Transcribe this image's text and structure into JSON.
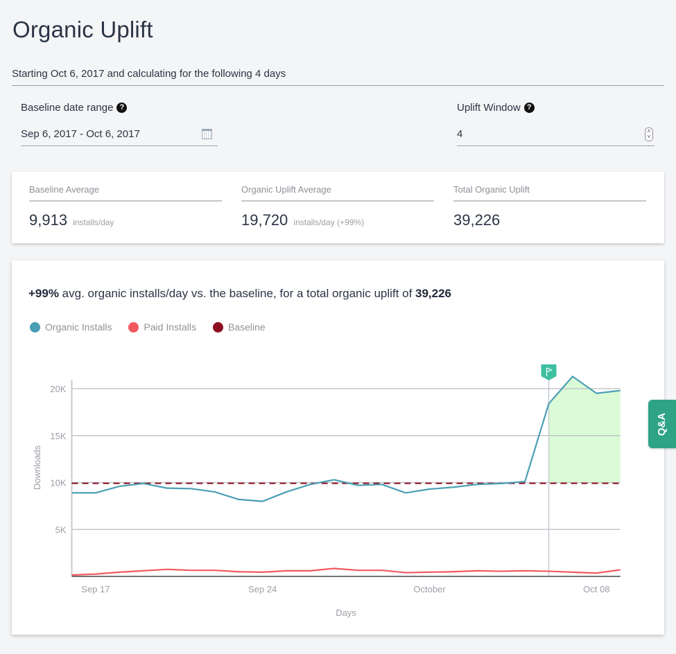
{
  "page": {
    "title": "Organic Uplift",
    "subtitle": "Starting Oct 6, 2017 and calculating for the following 4 days"
  },
  "controls": {
    "baseline_label": "Baseline date range",
    "baseline_value": "Sep 6, 2017 - Oct 6, 2017",
    "uplift_label": "Uplift Window",
    "uplift_value": "4",
    "help_glyph": "?",
    "stepper_up": "^",
    "stepper_down": "v"
  },
  "stats": [
    {
      "label": "Baseline Average",
      "value": "9,913",
      "unit": "installs/day"
    },
    {
      "label": "Organic Uplift Average",
      "value": "19,720",
      "unit": "installs/day (+99%)"
    },
    {
      "label": "Total Organic Uplift",
      "value": "39,226",
      "unit": ""
    }
  ],
  "headline": {
    "pct": "+99%",
    "text": " avg. organic installs/day vs. the baseline, for a total organic uplift of ",
    "total": "39,226"
  },
  "qa_tab": "Q&A",
  "chart_data": {
    "type": "line",
    "title": "+99% avg. organic installs/day vs. the baseline, for a total organic uplift of 39,226",
    "xlabel": "Days",
    "ylabel": "Downloads",
    "x": [
      "Sep 16",
      "Sep 17",
      "Sep 18",
      "Sep 19",
      "Sep 20",
      "Sep 21",
      "Sep 22",
      "Sep 23",
      "Sep 24",
      "Sep 25",
      "Sep 26",
      "Sep 27",
      "Sep 28",
      "Sep 29",
      "Sep 30",
      "Oct 1",
      "Oct 2",
      "Oct 3",
      "Oct 4",
      "Oct 5",
      "Oct 6",
      "Oct 7",
      "Oct 8",
      "Oct 9"
    ],
    "x_ticks": [
      {
        "label": "Sep 17",
        "index": 1
      },
      {
        "label": "Sep 24",
        "index": 8
      },
      {
        "label": "October",
        "index": 15
      },
      {
        "label": "Oct 08",
        "index": 22
      }
    ],
    "y_ticks": [
      {
        "label": "5K",
        "value": 5000
      },
      {
        "label": "10K",
        "value": 10000
      },
      {
        "label": "15K",
        "value": 15000
      },
      {
        "label": "20K",
        "value": 20000
      }
    ],
    "ylim": [
      0,
      21500
    ],
    "grid": true,
    "legend_position": "top-left",
    "series": [
      {
        "name": "Organic Installs",
        "color": "#4a9fb5",
        "values": [
          8900,
          8900,
          9600,
          9900,
          9400,
          9350,
          9000,
          8200,
          8000,
          9000,
          9800,
          10300,
          9700,
          9800,
          8900,
          9300,
          9500,
          9800,
          9900,
          10100,
          18400,
          21300,
          19500,
          19800
        ]
      },
      {
        "name": "Paid Installs",
        "color": "#f25a5f",
        "values": [
          150,
          250,
          450,
          600,
          750,
          650,
          650,
          500,
          450,
          600,
          600,
          850,
          650,
          650,
          400,
          450,
          500,
          600,
          550,
          600,
          550,
          450,
          350,
          700
        ]
      },
      {
        "name": "Baseline",
        "color": "#8b0f21",
        "style": "dashed",
        "value": 9913
      }
    ],
    "uplift_start_index": 20,
    "uplift_marker_icon": "flag-icon",
    "uplift_fill_color": "#dbfbd6",
    "marker_color": "#3ebfa0"
  }
}
